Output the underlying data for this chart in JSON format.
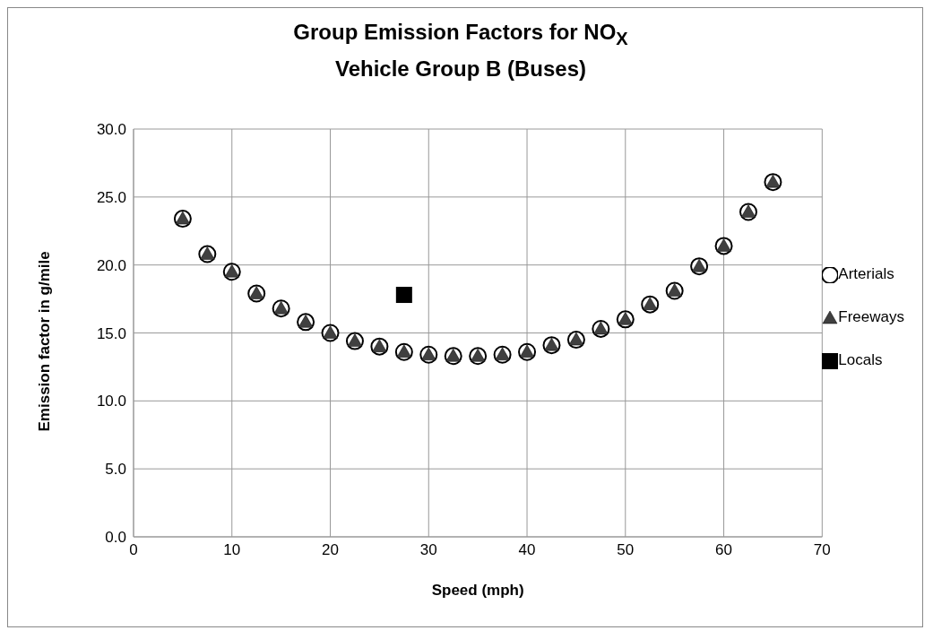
{
  "chart_data": {
    "type": "scatter",
    "title": "Group Emission Factors for NO$_{X}$",
    "subtitle": "Vehicle Group B (Buses)",
    "xlabel": "Speed (mph)",
    "ylabel": "Emission factor in g/mile",
    "xlim": [
      0,
      70
    ],
    "xticks": [
      0,
      10,
      20,
      30,
      40,
      50,
      60,
      70
    ],
    "ylim": [
      0,
      30
    ],
    "yticks": [
      {
        "value": 0,
        "label": "0.0"
      },
      {
        "value": 5,
        "label": "5.0"
      },
      {
        "value": 10,
        "label": "10.0"
      },
      {
        "value": 15,
        "label": "15.0"
      },
      {
        "value": 20,
        "label": "20.0"
      },
      {
        "value": 25,
        "label": "25.0"
      },
      {
        "value": 30,
        "label": "30.0"
      }
    ],
    "grid": true,
    "legend": "right",
    "series": [
      {
        "name": "Arterials",
        "color": "#ffffff",
        "marker": "circle",
        "x": [
          5,
          7.5,
          10,
          12.5,
          15,
          17.5,
          20,
          22.5,
          25,
          27.5,
          30,
          32.5,
          35,
          37.5,
          40,
          42.5,
          45,
          47.5,
          50,
          52.5,
          55,
          57.5,
          60,
          62.5,
          65
        ],
        "values": [
          23.4,
          20.8,
          19.5,
          17.9,
          16.8,
          15.8,
          15.0,
          14.4,
          14.0,
          13.6,
          13.4,
          13.3,
          13.3,
          13.4,
          13.6,
          14.1,
          14.5,
          15.3,
          16.0,
          17.1,
          18.1,
          19.9,
          21.4,
          23.9,
          26.1
        ]
      },
      {
        "name": "Freeways",
        "color": "#404040",
        "marker": "triangle",
        "x": [
          5,
          7.5,
          10,
          12.5,
          15,
          17.5,
          20,
          22.5,
          25,
          27.5,
          30,
          32.5,
          35,
          37.5,
          40,
          42.5,
          45,
          47.5,
          50,
          52.5,
          55,
          57.5,
          60,
          62.5,
          65
        ],
        "values": [
          23.4,
          20.8,
          19.5,
          17.9,
          16.8,
          15.8,
          15.0,
          14.4,
          14.0,
          13.6,
          13.4,
          13.3,
          13.3,
          13.4,
          13.6,
          14.1,
          14.5,
          15.3,
          16.0,
          17.1,
          18.1,
          19.9,
          21.4,
          23.9,
          26.1
        ]
      },
      {
        "name": "Locals",
        "color": "#000000",
        "marker": "square",
        "x": [
          27.5
        ],
        "values": [
          17.8
        ]
      }
    ]
  }
}
